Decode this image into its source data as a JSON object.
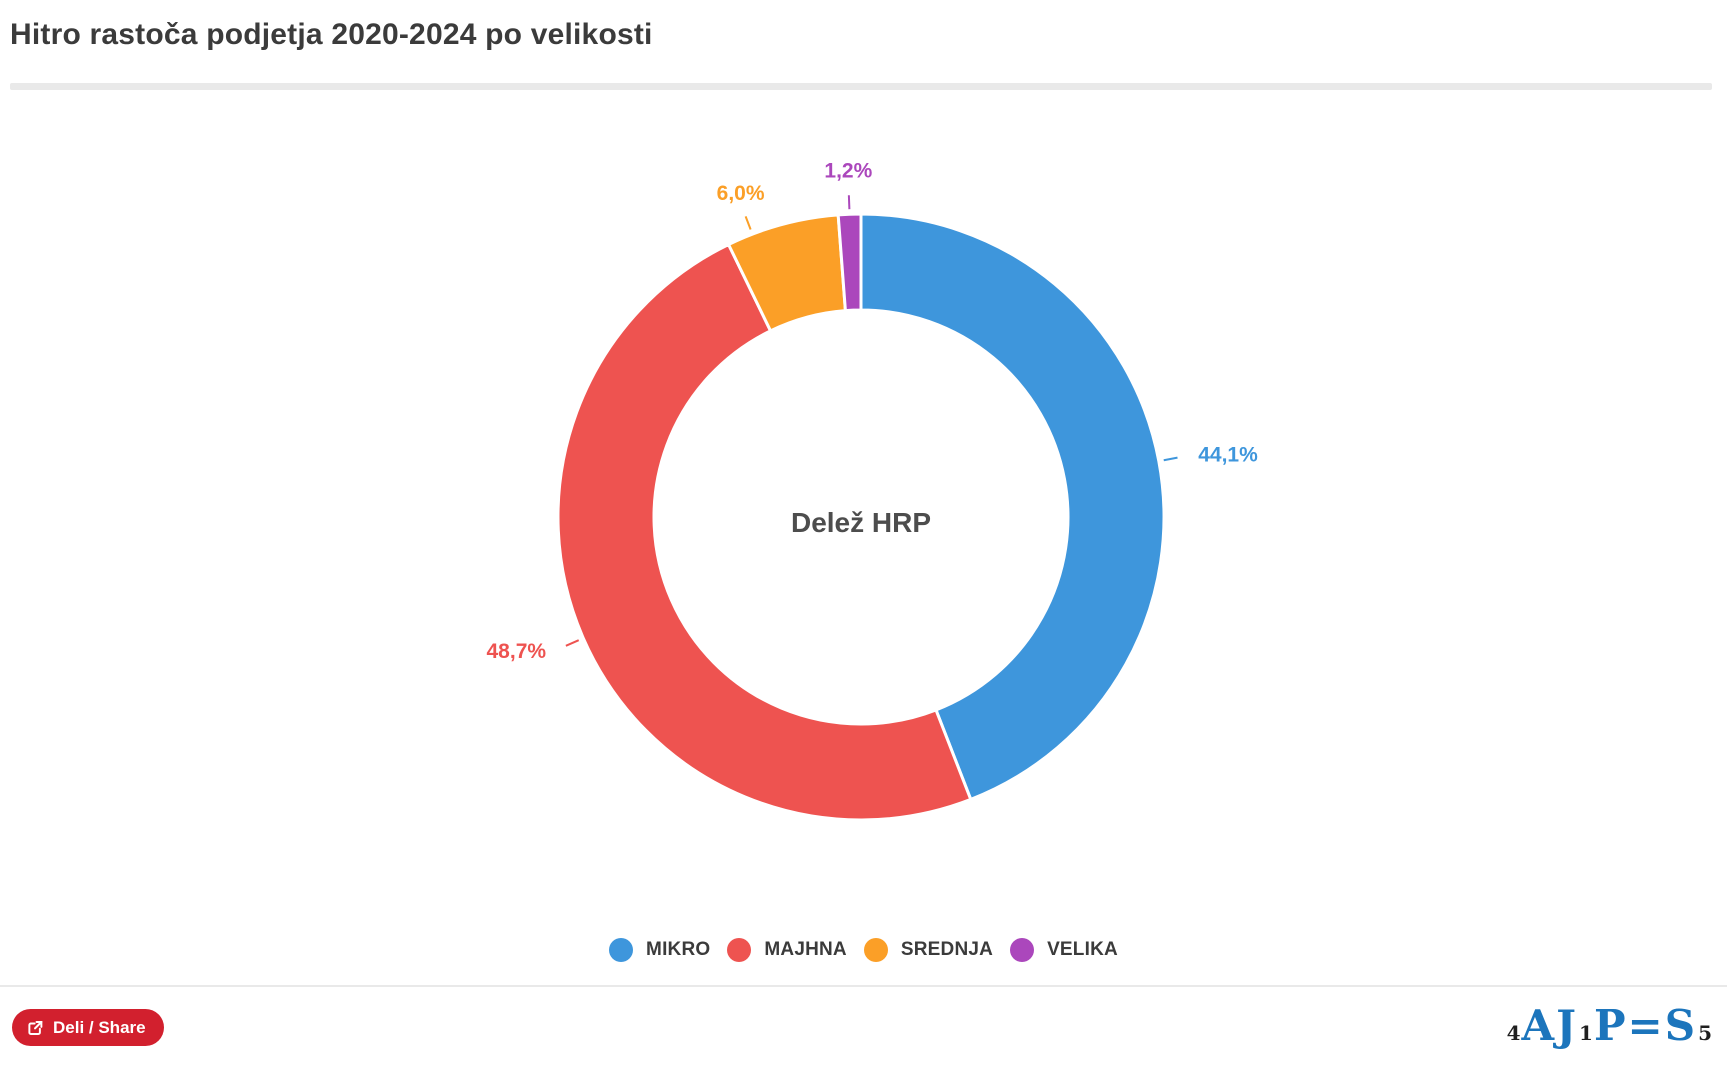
{
  "header": {
    "title": "Hitro rastoča podjetja 2020-2024 po velikosti"
  },
  "chart_data": {
    "type": "pie",
    "subtype": "donut",
    "title": "Hitro rastoča podjetja 2020-2024 po velikosti",
    "center_label": "Delež HRP",
    "categories": [
      "MIKRO",
      "MAJHNA",
      "SREDNJA",
      "VELIKA"
    ],
    "values": [
      44.1,
      48.7,
      6.0,
      1.2
    ],
    "value_labels": [
      "44,1%",
      "48,7%",
      "6,0%",
      "1,2%"
    ],
    "colors": [
      "#3e96dc",
      "#ee5350",
      "#fb9f27",
      "#ab47bc"
    ],
    "legend_position": "bottom",
    "start_angle_deg": 0,
    "direction": "clockwise"
  },
  "footer": {
    "share_label": "Deli / Share",
    "logo": {
      "alt": "AJPES",
      "parts": [
        {
          "text": "4",
          "kind": "digit"
        },
        {
          "text": "A",
          "kind": "letter"
        },
        {
          "text": "J",
          "kind": "letter"
        },
        {
          "text": "1",
          "kind": "digit"
        },
        {
          "text": "P",
          "kind": "letter"
        },
        {
          "text": "=",
          "kind": "letter"
        },
        {
          "text": "S",
          "kind": "letter"
        },
        {
          "text": "5",
          "kind": "digit"
        }
      ]
    }
  }
}
